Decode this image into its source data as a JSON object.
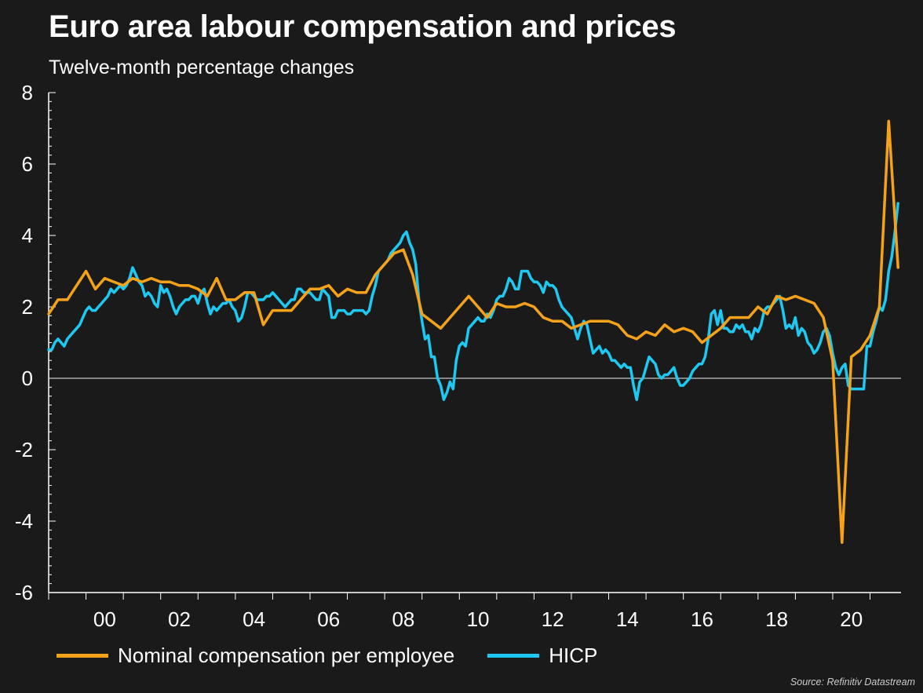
{
  "header": {
    "title": "Euro area labour compensation and prices",
    "subtitle": "Twelve-month percentage changes"
  },
  "source": "Source: Refinitiv Datastream",
  "colors": {
    "background": "#1a1a1a",
    "compensation": "#f5a21b",
    "hicp": "#1ec8f0",
    "axis": "#ffffff",
    "zero_line": "#c8c8c8"
  },
  "chart_data": {
    "type": "line",
    "title": "Euro area labour compensation and prices",
    "subtitle": "Twelve-month percentage changes",
    "xlabel": "",
    "ylabel": "",
    "xlim": [
      1999.0,
      2021.83
    ],
    "ylim": [
      -6,
      8
    ],
    "y_ticks": [
      "8",
      "6",
      "4",
      "2",
      "0",
      "-2",
      "-4",
      "-6"
    ],
    "y_tick_values": [
      8,
      6,
      4,
      2,
      0,
      -2,
      -4,
      -6
    ],
    "x_ticks": [
      "00",
      "02",
      "04",
      "06",
      "08",
      "10",
      "12",
      "14",
      "16",
      "18",
      "20"
    ],
    "x_tick_values": [
      2000,
      2002,
      2004,
      2006,
      2008,
      2010,
      2012,
      2014,
      2016,
      2018,
      2020
    ],
    "grid": false,
    "legend_position": "bottom",
    "series": [
      {
        "name": "Nominal compensation per employee",
        "frequency": "quarterly",
        "x": [
          1999.0,
          1999.25,
          1999.5,
          1999.75,
          2000.0,
          2000.25,
          2000.5,
          2000.75,
          2001.0,
          2001.25,
          2001.5,
          2001.75,
          2002.0,
          2002.25,
          2002.5,
          2002.75,
          2003.0,
          2003.25,
          2003.5,
          2003.75,
          2004.0,
          2004.25,
          2004.5,
          2004.75,
          2005.0,
          2005.25,
          2005.5,
          2005.75,
          2006.0,
          2006.25,
          2006.5,
          2006.75,
          2007.0,
          2007.25,
          2007.5,
          2007.75,
          2008.0,
          2008.25,
          2008.5,
          2008.75,
          2009.0,
          2009.25,
          2009.5,
          2009.75,
          2010.0,
          2010.25,
          2010.5,
          2010.75,
          2011.0,
          2011.25,
          2011.5,
          2011.75,
          2012.0,
          2012.25,
          2012.5,
          2012.75,
          2013.0,
          2013.25,
          2013.5,
          2013.75,
          2014.0,
          2014.25,
          2014.5,
          2014.75,
          2015.0,
          2015.25,
          2015.5,
          2015.75,
          2016.0,
          2016.25,
          2016.5,
          2016.75,
          2017.0,
          2017.25,
          2017.5,
          2017.75,
          2018.0,
          2018.25,
          2018.5,
          2018.75,
          2019.0,
          2019.25,
          2019.5,
          2019.75,
          2020.0,
          2020.25,
          2020.5,
          2020.75,
          2021.0,
          2021.25,
          2021.5,
          2021.75
        ],
        "values": [
          1.8,
          2.2,
          2.2,
          2.6,
          3.0,
          2.5,
          2.8,
          2.7,
          2.6,
          2.8,
          2.7,
          2.8,
          2.7,
          2.7,
          2.6,
          2.6,
          2.5,
          2.3,
          2.8,
          2.2,
          2.2,
          2.4,
          2.4,
          1.5,
          1.9,
          1.9,
          1.9,
          2.2,
          2.5,
          2.5,
          2.6,
          2.3,
          2.5,
          2.4,
          2.4,
          2.9,
          3.2,
          3.5,
          3.6,
          2.9,
          1.8,
          1.6,
          1.4,
          1.7,
          2.0,
          2.3,
          2.0,
          1.7,
          2.1,
          2.0,
          2.0,
          2.1,
          2.0,
          1.7,
          1.6,
          1.6,
          1.4,
          1.5,
          1.6,
          1.6,
          1.6,
          1.5,
          1.2,
          1.1,
          1.3,
          1.2,
          1.5,
          1.3,
          1.4,
          1.3,
          1.0,
          1.2,
          1.4,
          1.7,
          1.7,
          1.7,
          2.0,
          1.8,
          2.3,
          2.2,
          2.3,
          2.2,
          2.1,
          1.7,
          0.5,
          -4.6,
          0.6,
          0.8,
          1.2,
          2.0,
          7.2,
          3.1
        ]
      },
      {
        "name": "HICP",
        "frequency": "monthly",
        "x_start": 1999.0,
        "x_step": 0.08333,
        "values": [
          0.8,
          0.8,
          1.0,
          1.1,
          1.0,
          0.9,
          1.1,
          1.2,
          1.3,
          1.4,
          1.5,
          1.7,
          1.9,
          2.0,
          1.9,
          1.9,
          2.0,
          2.1,
          2.2,
          2.3,
          2.5,
          2.4,
          2.5,
          2.6,
          2.5,
          2.6,
          2.8,
          3.1,
          2.9,
          2.7,
          2.6,
          2.3,
          2.4,
          2.3,
          2.1,
          2.0,
          2.6,
          2.4,
          2.5,
          2.3,
          2.0,
          1.8,
          2.0,
          2.1,
          2.2,
          2.2,
          2.3,
          2.3,
          2.1,
          2.4,
          2.5,
          2.1,
          1.8,
          2.0,
          1.9,
          2.0,
          2.1,
          2.1,
          2.2,
          2.0,
          1.9,
          1.6,
          1.7,
          2.0,
          2.4,
          2.4,
          2.3,
          2.2,
          2.2,
          2.2,
          2.3,
          2.3,
          2.4,
          2.3,
          2.2,
          2.1,
          2.0,
          2.1,
          2.2,
          2.2,
          2.5,
          2.5,
          2.4,
          2.4,
          2.4,
          2.3,
          2.2,
          2.2,
          2.5,
          2.4,
          2.3,
          1.7,
          1.7,
          1.9,
          1.9,
          1.9,
          1.8,
          1.8,
          1.9,
          1.9,
          1.9,
          1.9,
          1.8,
          1.9,
          2.3,
          2.6,
          3.0,
          3.1,
          3.2,
          3.3,
          3.5,
          3.6,
          3.7,
          3.8,
          4.0,
          4.1,
          3.8,
          3.6,
          3.2,
          2.2,
          1.6,
          1.1,
          1.2,
          0.6,
          0.6,
          0.0,
          -0.2,
          -0.6,
          -0.4,
          -0.1,
          -0.3,
          0.5,
          0.9,
          1.0,
          0.9,
          1.4,
          1.5,
          1.6,
          1.7,
          1.6,
          1.6,
          1.8,
          1.7,
          1.9,
          2.2,
          2.3,
          2.3,
          2.5,
          2.8,
          2.7,
          2.5,
          2.5,
          3.0,
          3.0,
          3.0,
          2.8,
          2.7,
          2.7,
          2.6,
          2.4,
          2.7,
          2.6,
          2.6,
          2.5,
          2.2,
          2.0,
          1.9,
          1.8,
          1.7,
          1.4,
          1.1,
          1.4,
          1.6,
          1.5,
          1.1,
          0.7,
          0.8,
          0.9,
          0.7,
          0.8,
          0.7,
          0.5,
          0.5,
          0.4,
          0.3,
          0.4,
          0.3,
          0.3,
          -0.2,
          -0.6,
          -0.1,
          0.0,
          0.3,
          0.6,
          0.5,
          0.4,
          0.1,
          0.0,
          0.1,
          0.1,
          0.2,
          0.3,
          0.0,
          -0.2,
          -0.2,
          -0.1,
          0.0,
          0.2,
          0.3,
          0.4,
          0.4,
          0.6,
          1.1,
          1.8,
          1.9,
          1.5,
          1.9,
          1.4,
          1.4,
          1.3,
          1.3,
          1.5,
          1.4,
          1.5,
          1.3,
          1.3,
          1.1,
          1.4,
          1.3,
          1.5,
          1.9,
          2.0,
          2.0,
          2.1,
          2.2,
          2.3,
          1.9,
          1.4,
          1.5,
          1.4,
          1.7,
          1.2,
          1.4,
          1.3,
          1.0,
          0.9,
          0.7,
          0.8,
          1.0,
          1.3,
          1.4,
          1.2,
          0.7,
          0.3,
          0.1,
          0.3,
          0.4,
          -0.2,
          -0.3,
          -0.3,
          -0.3,
          -0.3,
          -0.3,
          0.9,
          0.9,
          1.3,
          1.6,
          2.0,
          1.9,
          2.2,
          3.0,
          3.4,
          4.1,
          4.9
        ]
      }
    ]
  }
}
